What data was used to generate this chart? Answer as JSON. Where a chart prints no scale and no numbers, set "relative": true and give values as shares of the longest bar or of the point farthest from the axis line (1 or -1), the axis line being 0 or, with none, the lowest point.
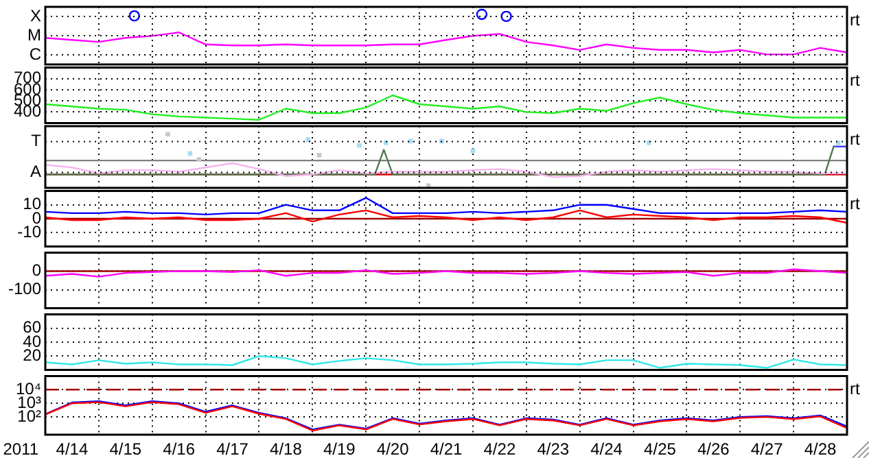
{
  "chart_data": [
    {
      "type": "line",
      "relative": true,
      "grid": true,
      "tick_labels": "y",
      "marker": "none",
      "annotations": [
        "X",
        "M",
        "C"
      ],
      "y2label": "rt",
      "xlim": [
        "2011-04-14T00:00",
        "2011-04-29T00:00"
      ],
      "xticks": [
        {
          "value": "2011-04-15T00:00",
          "label": null
        },
        {
          "value": "2011-04-16T00:00",
          "label": null
        },
        {
          "value": "2011-04-17T00:00",
          "label": null
        },
        {
          "value": "2011-04-18T00:00",
          "label": null
        },
        {
          "value": "2011-04-19T00:00",
          "label": null
        },
        {
          "value": "2011-04-20T00:00",
          "label": null
        },
        {
          "value": "2011-04-21T00:00",
          "label": null
        },
        {
          "value": "2011-04-22T00:00",
          "label": null
        },
        {
          "value": "2011-04-23T00:00",
          "label": null
        },
        {
          "value": "2011-04-24T00:00",
          "label": null
        },
        {
          "value": "2011-04-25T00:00",
          "label": null
        },
        {
          "value": "2011-04-26T00:00",
          "label": null
        },
        {
          "value": "2011-04-27T00:00",
          "label": null
        },
        {
          "value": "2011-04-28T00:00",
          "label": null
        }
      ],
      "x": [
        "2011-04-14T00:00",
        "2011-04-14T12:00",
        "2011-04-15T00:00",
        "2011-04-15T12:00",
        "2011-04-16T00:00",
        "2011-04-16T12:00",
        "2011-04-17T00:00",
        "2011-04-17T12:00",
        "2011-04-18T00:00",
        "2011-04-18T12:00",
        "2011-04-19T00:00",
        "2011-04-19T12:00",
        "2011-04-20T00:00",
        "2011-04-20T12:00",
        "2011-04-21T00:00",
        "2011-04-21T12:00",
        "2011-04-22T00:00",
        "2011-04-22T12:00",
        "2011-04-23T00:00",
        "2011-04-23T12:00",
        "2011-04-24T00:00",
        "2011-04-24T12:00",
        "2011-04-25T00:00",
        "2011-04-25T12:00",
        "2011-04-26T00:00",
        "2011-04-26T12:00",
        "2011-04-27T00:00",
        "2011-04-27T12:00",
        "2011-04-28T00:00",
        "2011-04-28T12:00",
        "2011-04-29T00:00"
      ],
      "series": [
        {
          "color": "#ff00ff",
          "values": [
            0.53,
            0.49,
            0.45,
            0.53,
            0.57,
            0.64,
            0.4,
            0.38,
            0.38,
            0.4,
            0.38,
            0.38,
            0.38,
            0.4,
            0.4,
            0.49,
            0.57,
            0.61,
            0.45,
            0.38,
            0.29,
            0.4,
            0.33,
            0.29,
            0.29,
            0.24,
            0.29,
            0.2,
            0.2,
            0.33,
            0.24
          ]
        },
        {
          "type": "scatter",
          "marker": "circle",
          "color": "#0000ff",
          "x": [
            "2011-04-15T16:00",
            "2011-04-22T04:00",
            "2011-04-22T15:00"
          ],
          "values": [
            0.97,
            1,
            0.96
          ]
        }
      ]
    },
    {
      "type": "line",
      "grid": true,
      "tick_labels": "y",
      "marker": "none",
      "y2label": "rt",
      "ylim": [
        300,
        800
      ],
      "yticks": [
        400,
        500,
        600,
        700
      ],
      "xlim": [
        "2011-04-14T00:00",
        "2011-04-29T00:00"
      ],
      "xticks": [
        {
          "value": "2011-04-15T00:00",
          "label": null
        },
        {
          "value": "2011-04-16T00:00",
          "label": null
        },
        {
          "value": "2011-04-17T00:00",
          "label": null
        },
        {
          "value": "2011-04-18T00:00",
          "label": null
        },
        {
          "value": "2011-04-19T00:00",
          "label": null
        },
        {
          "value": "2011-04-20T00:00",
          "label": null
        },
        {
          "value": "2011-04-21T00:00",
          "label": null
        },
        {
          "value": "2011-04-22T00:00",
          "label": null
        },
        {
          "value": "2011-04-23T00:00",
          "label": null
        },
        {
          "value": "2011-04-24T00:00",
          "label": null
        },
        {
          "value": "2011-04-25T00:00",
          "label": null
        },
        {
          "value": "2011-04-26T00:00",
          "label": null
        },
        {
          "value": "2011-04-27T00:00",
          "label": null
        },
        {
          "value": "2011-04-28T00:00",
          "label": null
        }
      ],
      "x": [
        "2011-04-14T00:00",
        "2011-04-14T12:00",
        "2011-04-15T00:00",
        "2011-04-15T12:00",
        "2011-04-16T00:00",
        "2011-04-16T12:00",
        "2011-04-17T00:00",
        "2011-04-17T12:00",
        "2011-04-18T00:00",
        "2011-04-18T12:00",
        "2011-04-19T00:00",
        "2011-04-19T12:00",
        "2011-04-20T00:00",
        "2011-04-20T12:00",
        "2011-04-21T00:00",
        "2011-04-21T12:00",
        "2011-04-22T00:00",
        "2011-04-22T12:00",
        "2011-04-23T00:00",
        "2011-04-23T12:00",
        "2011-04-24T00:00",
        "2011-04-24T12:00",
        "2011-04-25T00:00",
        "2011-04-25T12:00",
        "2011-04-26T00:00",
        "2011-04-26T12:00",
        "2011-04-27T00:00",
        "2011-04-27T12:00",
        "2011-04-28T00:00",
        "2011-04-28T12:00",
        "2011-04-29T00:00"
      ],
      "series": [
        {
          "color": "#22ee22",
          "values": [
            470,
            450,
            430,
            420,
            380,
            360,
            350,
            340,
            330,
            430,
            390,
            390,
            440,
            550,
            470,
            450,
            430,
            450,
            400,
            390,
            430,
            410,
            480,
            530,
            470,
            420,
            390,
            370,
            350,
            350,
            350
          ]
        }
      ]
    },
    {
      "type": "line",
      "relative": true,
      "grid": true,
      "tick_labels": "y",
      "marker": "none",
      "annotations": [
        "T",
        "A"
      ],
      "y2label": "rt",
      "xlim": [
        "2011-04-14T00:00",
        "2011-04-29T00:00"
      ],
      "xticks": [
        {
          "value": "2011-04-15T00:00",
          "label": null
        },
        {
          "value": "2011-04-16T00:00",
          "label": null
        },
        {
          "value": "2011-04-17T00:00",
          "label": null
        },
        {
          "value": "2011-04-18T00:00",
          "label": null
        },
        {
          "value": "2011-04-19T00:00",
          "label": null
        },
        {
          "value": "2011-04-20T00:00",
          "label": null
        },
        {
          "value": "2011-04-21T00:00",
          "label": null
        },
        {
          "value": "2011-04-22T00:00",
          "label": null
        },
        {
          "value": "2011-04-23T00:00",
          "label": null
        },
        {
          "value": "2011-04-24T00:00",
          "label": null
        },
        {
          "value": "2011-04-25T00:00",
          "label": null
        },
        {
          "value": "2011-04-26T00:00",
          "label": null
        },
        {
          "value": "2011-04-27T00:00",
          "label": null
        },
        {
          "value": "2011-04-28T00:00",
          "label": null
        }
      ],
      "x": [
        "2011-04-14T00:00",
        "2011-04-14T12:00",
        "2011-04-15T00:00",
        "2011-04-15T12:00",
        "2011-04-16T00:00",
        "2011-04-16T12:00",
        "2011-04-17T00:00",
        "2011-04-17T12:00",
        "2011-04-18T00:00",
        "2011-04-18T12:00",
        "2011-04-19T00:00",
        "2011-04-19T12:00",
        "2011-04-20T00:00",
        "2011-04-20T12:00",
        "2011-04-21T00:00",
        "2011-04-21T12:00",
        "2011-04-22T00:00",
        "2011-04-22T12:00",
        "2011-04-23T00:00",
        "2011-04-23T12:00",
        "2011-04-24T00:00",
        "2011-04-24T12:00",
        "2011-04-25T00:00",
        "2011-04-25T12:00",
        "2011-04-26T00:00",
        "2011-04-26T12:00",
        "2011-04-27T00:00",
        "2011-04-27T12:00",
        "2011-04-28T00:00",
        "2011-04-28T12:00",
        "2011-04-29T00:00"
      ],
      "ref_lines": [
        {
          "axis": "y",
          "value": 0.51,
          "color": "#808080"
        },
        {
          "axis": "y",
          "value": 0.25,
          "color": "#cc0000"
        }
      ],
      "series": [
        {
          "color": "#f4b4ec",
          "values": [
            0.43,
            0.38,
            0.27,
            0.33,
            0.33,
            0.3,
            0.38,
            0.46,
            0.35,
            0.22,
            0.25,
            0.33,
            0.27,
            0.3,
            0.3,
            0.3,
            0.33,
            0.35,
            0.3,
            0.2,
            0.22,
            0.3,
            0.33,
            0.3,
            0.33,
            0.35,
            0.33,
            0.3,
            0.3,
            0.27,
            0.27
          ]
        },
        {
          "type": "scatter",
          "marker": "square",
          "color": "#a8dcf4",
          "x": [
            "2011-04-16T17:00",
            "2011-04-18T22:00",
            "2011-04-19T21:00",
            "2011-04-20T09:00",
            "2011-04-20T20:00",
            "2011-04-21T10:00",
            "2011-04-22T00:00",
            "2011-04-25T07:00",
            "2011-04-28T20:00"
          ],
          "values": [
            0.64,
            0.9,
            0.79,
            0.84,
            0.87,
            0.87,
            0.69,
            0.84,
            0.84
          ]
        },
        {
          "type": "scatter",
          "marker": "square",
          "color": "#c8c8c8",
          "x": [
            "2011-04-16T07:00",
            "2011-04-16T21:00",
            "2011-04-19T03:00",
            "2011-04-21T04:00"
          ],
          "values": [
            1,
            0.53,
            0.61,
            0.04
          ]
        },
        {
          "color": "#507850",
          "x": [
            "2011-04-14T00:00",
            "2011-04-20T04:00",
            "2011-04-20T08:00",
            "2011-04-20T12:00",
            "2011-04-28T14:00",
            "2011-04-28T18:00"
          ],
          "values": [
            0.25,
            0.25,
            0.71,
            0.25,
            0.25,
            0.77
          ]
        },
        {
          "color": "#4040ff",
          "x": [
            "2011-04-28T18:00",
            "2011-04-29T00:00"
          ],
          "values": [
            0.77,
            0.77
          ]
        }
      ]
    },
    {
      "type": "line",
      "grid": true,
      "tick_labels": "y",
      "marker": "none",
      "y2label": "rt",
      "ylim": [
        -20,
        20
      ],
      "yticks": [
        10,
        0,
        -10
      ],
      "xlim": [
        "2011-04-14T00:00",
        "2011-04-29T00:00"
      ],
      "xticks": [
        {
          "value": "2011-04-15T00:00",
          "label": null
        },
        {
          "value": "2011-04-16T00:00",
          "label": null
        },
        {
          "value": "2011-04-17T00:00",
          "label": null
        },
        {
          "value": "2011-04-18T00:00",
          "label": null
        },
        {
          "value": "2011-04-19T00:00",
          "label": null
        },
        {
          "value": "2011-04-20T00:00",
          "label": null
        },
        {
          "value": "2011-04-21T00:00",
          "label": null
        },
        {
          "value": "2011-04-22T00:00",
          "label": null
        },
        {
          "value": "2011-04-23T00:00",
          "label": null
        },
        {
          "value": "2011-04-24T00:00",
          "label": null
        },
        {
          "value": "2011-04-25T00:00",
          "label": null
        },
        {
          "value": "2011-04-26T00:00",
          "label": null
        },
        {
          "value": "2011-04-27T00:00",
          "label": null
        },
        {
          "value": "2011-04-28T00:00",
          "label": null
        }
      ],
      "x": [
        "2011-04-14T00:00",
        "2011-04-14T12:00",
        "2011-04-15T00:00",
        "2011-04-15T12:00",
        "2011-04-16T00:00",
        "2011-04-16T12:00",
        "2011-04-17T00:00",
        "2011-04-17T12:00",
        "2011-04-18T00:00",
        "2011-04-18T12:00",
        "2011-04-19T00:00",
        "2011-04-19T12:00",
        "2011-04-20T00:00",
        "2011-04-20T12:00",
        "2011-04-21T00:00",
        "2011-04-21T12:00",
        "2011-04-22T00:00",
        "2011-04-22T12:00",
        "2011-04-23T00:00",
        "2011-04-23T12:00",
        "2011-04-24T00:00",
        "2011-04-24T12:00",
        "2011-04-25T00:00",
        "2011-04-25T12:00",
        "2011-04-26T00:00",
        "2011-04-26T12:00",
        "2011-04-27T00:00",
        "2011-04-27T12:00",
        "2011-04-28T00:00",
        "2011-04-28T12:00",
        "2011-04-29T00:00"
      ],
      "ref_lines": [
        {
          "axis": "y",
          "value": 0,
          "color": "#a00000"
        }
      ],
      "series": [
        {
          "color": "#0000ff",
          "values": [
            5,
            4,
            4,
            5,
            4,
            4,
            3,
            4,
            4,
            10,
            6,
            6,
            15,
            4,
            4,
            4,
            5,
            4,
            5,
            6,
            10,
            10,
            7,
            4,
            4,
            4,
            4,
            4,
            5,
            6,
            5
          ]
        },
        {
          "color": "#ff0000",
          "values": [
            1,
            -1,
            -1,
            1,
            0,
            1,
            -1,
            -1,
            0,
            4,
            -2,
            3,
            6,
            1,
            2,
            1,
            -1,
            1,
            -1,
            1,
            6,
            1,
            3,
            2,
            1,
            -1,
            1,
            1,
            2,
            1,
            -3
          ]
        }
      ]
    },
    {
      "type": "line",
      "grid": true,
      "tick_labels": "y",
      "marker": "none",
      "ylim": [
        -200,
        100
      ],
      "yticks": [
        0,
        -100
      ],
      "xlim": [
        "2011-04-14T00:00",
        "2011-04-29T00:00"
      ],
      "xticks": [
        {
          "value": "2011-04-15T00:00",
          "label": null
        },
        {
          "value": "2011-04-16T00:00",
          "label": null
        },
        {
          "value": "2011-04-17T00:00",
          "label": null
        },
        {
          "value": "2011-04-18T00:00",
          "label": null
        },
        {
          "value": "2011-04-19T00:00",
          "label": null
        },
        {
          "value": "2011-04-20T00:00",
          "label": null
        },
        {
          "value": "2011-04-21T00:00",
          "label": null
        },
        {
          "value": "2011-04-22T00:00",
          "label": null
        },
        {
          "value": "2011-04-23T00:00",
          "label": null
        },
        {
          "value": "2011-04-24T00:00",
          "label": null
        },
        {
          "value": "2011-04-25T00:00",
          "label": null
        },
        {
          "value": "2011-04-26T00:00",
          "label": null
        },
        {
          "value": "2011-04-27T00:00",
          "label": null
        },
        {
          "value": "2011-04-28T00:00",
          "label": null
        }
      ],
      "x": [
        "2011-04-14T00:00",
        "2011-04-14T12:00",
        "2011-04-15T00:00",
        "2011-04-15T12:00",
        "2011-04-16T00:00",
        "2011-04-16T12:00",
        "2011-04-17T00:00",
        "2011-04-17T12:00",
        "2011-04-18T00:00",
        "2011-04-18T12:00",
        "2011-04-19T00:00",
        "2011-04-19T12:00",
        "2011-04-20T00:00",
        "2011-04-20T12:00",
        "2011-04-21T00:00",
        "2011-04-21T12:00",
        "2011-04-22T00:00",
        "2011-04-22T12:00",
        "2011-04-23T00:00",
        "2011-04-23T12:00",
        "2011-04-24T00:00",
        "2011-04-24T12:00",
        "2011-04-25T00:00",
        "2011-04-25T12:00",
        "2011-04-26T00:00",
        "2011-04-26T12:00",
        "2011-04-27T00:00",
        "2011-04-27T12:00",
        "2011-04-28T00:00",
        "2011-04-28T12:00",
        "2011-04-29T00:00"
      ],
      "ref_lines": [
        {
          "axis": "y",
          "value": 0,
          "color": "#a00000"
        }
      ],
      "series": [
        {
          "color": "#ff00ff",
          "values": [
            -25,
            -15,
            -30,
            -10,
            -5,
            0,
            0,
            -5,
            5,
            -25,
            -10,
            -10,
            5,
            -15,
            -10,
            0,
            -10,
            -10,
            -15,
            -10,
            0,
            -10,
            -15,
            -10,
            -5,
            -25,
            -10,
            -10,
            10,
            0,
            -10
          ]
        }
      ]
    },
    {
      "type": "line",
      "grid": true,
      "tick_labels": "y",
      "marker": "none",
      "ylim": [
        0,
        80
      ],
      "yticks": [
        20,
        40,
        60
      ],
      "xlim": [
        "2011-04-14T00:00",
        "2011-04-29T00:00"
      ],
      "xticks": [
        {
          "value": "2011-04-15T00:00",
          "label": null
        },
        {
          "value": "2011-04-16T00:00",
          "label": null
        },
        {
          "value": "2011-04-17T00:00",
          "label": null
        },
        {
          "value": "2011-04-18T00:00",
          "label": null
        },
        {
          "value": "2011-04-19T00:00",
          "label": null
        },
        {
          "value": "2011-04-20T00:00",
          "label": null
        },
        {
          "value": "2011-04-21T00:00",
          "label": null
        },
        {
          "value": "2011-04-22T00:00",
          "label": null
        },
        {
          "value": "2011-04-23T00:00",
          "label": null
        },
        {
          "value": "2011-04-24T00:00",
          "label": null
        },
        {
          "value": "2011-04-25T00:00",
          "label": null
        },
        {
          "value": "2011-04-26T00:00",
          "label": null
        },
        {
          "value": "2011-04-27T00:00",
          "label": null
        },
        {
          "value": "2011-04-28T00:00",
          "label": null
        }
      ],
      "x": [
        "2011-04-14T00:00",
        "2011-04-14T12:00",
        "2011-04-15T00:00",
        "2011-04-15T12:00",
        "2011-04-16T00:00",
        "2011-04-16T12:00",
        "2011-04-17T00:00",
        "2011-04-17T12:00",
        "2011-04-18T00:00",
        "2011-04-18T12:00",
        "2011-04-19T00:00",
        "2011-04-19T12:00",
        "2011-04-20T00:00",
        "2011-04-20T12:00",
        "2011-04-21T00:00",
        "2011-04-21T12:00",
        "2011-04-22T00:00",
        "2011-04-22T12:00",
        "2011-04-23T00:00",
        "2011-04-23T12:00",
        "2011-04-24T00:00",
        "2011-04-24T12:00",
        "2011-04-25T00:00",
        "2011-04-25T12:00",
        "2011-04-26T00:00",
        "2011-04-26T12:00",
        "2011-04-27T00:00",
        "2011-04-27T12:00",
        "2011-04-28T00:00",
        "2011-04-28T12:00",
        "2011-04-29T00:00"
      ],
      "series": [
        {
          "color": "#30e8e8",
          "values": [
            11,
            8,
            14,
            9,
            11,
            8,
            8,
            7,
            20,
            17,
            8,
            13,
            17,
            14,
            8,
            8,
            9,
            11,
            11,
            9,
            8,
            14,
            14,
            3,
            9,
            8,
            7,
            3,
            15,
            8,
            7
          ]
        }
      ]
    },
    {
      "type": "line",
      "log": true,
      "grid": true,
      "marker": "none",
      "xlabel": "2011",
      "y2label": "rt",
      "ylim": [
        5,
        100000
      ],
      "yticks": [
        {
          "value": 10000,
          "label": "10⁴"
        },
        {
          "value": 1000,
          "label": "10³"
        },
        {
          "value": 100,
          "label": "10²"
        }
      ],
      "xlim": [
        "2011-04-14T00:00",
        "2011-04-29T00:00"
      ],
      "xticks": [
        {
          "value": "2011-04-14T12:00",
          "label": "4/14"
        },
        {
          "value": "2011-04-15T00:00",
          "label": null
        },
        {
          "value": "2011-04-15T12:00",
          "label": "4/15"
        },
        {
          "value": "2011-04-16T00:00",
          "label": null
        },
        {
          "value": "2011-04-16T12:00",
          "label": "4/16"
        },
        {
          "value": "2011-04-17T00:00",
          "label": null
        },
        {
          "value": "2011-04-17T12:00",
          "label": "4/17"
        },
        {
          "value": "2011-04-18T00:00",
          "label": null
        },
        {
          "value": "2011-04-18T12:00",
          "label": "4/18"
        },
        {
          "value": "2011-04-19T00:00",
          "label": null
        },
        {
          "value": "2011-04-19T12:00",
          "label": "4/19"
        },
        {
          "value": "2011-04-20T00:00",
          "label": null
        },
        {
          "value": "2011-04-20T12:00",
          "label": "4/20"
        },
        {
          "value": "2011-04-21T00:00",
          "label": null
        },
        {
          "value": "2011-04-21T12:00",
          "label": "4/21"
        },
        {
          "value": "2011-04-22T00:00",
          "label": null
        },
        {
          "value": "2011-04-22T12:00",
          "label": "4/22"
        },
        {
          "value": "2011-04-23T00:00",
          "label": null
        },
        {
          "value": "2011-04-23T12:00",
          "label": "4/23"
        },
        {
          "value": "2011-04-24T00:00",
          "label": null
        },
        {
          "value": "2011-04-24T12:00",
          "label": "4/24"
        },
        {
          "value": "2011-04-25T00:00",
          "label": null
        },
        {
          "value": "2011-04-25T12:00",
          "label": "4/25"
        },
        {
          "value": "2011-04-26T00:00",
          "label": null
        },
        {
          "value": "2011-04-26T12:00",
          "label": "4/26"
        },
        {
          "value": "2011-04-27T00:00",
          "label": null
        },
        {
          "value": "2011-04-27T12:00",
          "label": "4/27"
        },
        {
          "value": "2011-04-28T00:00",
          "label": null
        },
        {
          "value": "2011-04-28T12:00",
          "label": "4/28"
        }
      ],
      "x": [
        "2011-04-14T00:00",
        "2011-04-14T12:00",
        "2011-04-15T00:00",
        "2011-04-15T12:00",
        "2011-04-16T00:00",
        "2011-04-16T12:00",
        "2011-04-17T00:00",
        "2011-04-17T12:00",
        "2011-04-18T00:00",
        "2011-04-18T12:00",
        "2011-04-19T00:00",
        "2011-04-19T12:00",
        "2011-04-20T00:00",
        "2011-04-20T12:00",
        "2011-04-21T00:00",
        "2011-04-21T12:00",
        "2011-04-22T00:00",
        "2011-04-22T12:00",
        "2011-04-23T00:00",
        "2011-04-23T12:00",
        "2011-04-24T00:00",
        "2011-04-24T12:00",
        "2011-04-25T00:00",
        "2011-04-25T12:00",
        "2011-04-26T00:00",
        "2011-04-26T12:00",
        "2011-04-27T00:00",
        "2011-04-27T12:00",
        "2011-04-28T00:00",
        "2011-04-28T12:00",
        "2011-04-29T00:00"
      ],
      "ref_lines": [
        {
          "axis": "y",
          "value": 10000,
          "color": "#a00000",
          "line_style": "dashed"
        }
      ],
      "series": [
        {
          "color": "#ff0000",
          "values": [
            150,
            1000,
            1200,
            600,
            1200,
            850,
            200,
            600,
            170,
            70,
            10,
            24,
            12,
            70,
            28,
            48,
            70,
            24,
            70,
            55,
            24,
            70,
            24,
            48,
            70,
            48,
            85,
            100,
            70,
            110,
            15
          ]
        },
        {
          "color": "#0000ff",
          "values": [
            160,
            1150,
            1400,
            700,
            1400,
            1000,
            240,
            700,
            200,
            80,
            12,
            27,
            14,
            80,
            32,
            56,
            80,
            27,
            80,
            65,
            27,
            80,
            27,
            56,
            80,
            56,
            100,
            115,
            80,
            130,
            20
          ]
        }
      ]
    }
  ]
}
